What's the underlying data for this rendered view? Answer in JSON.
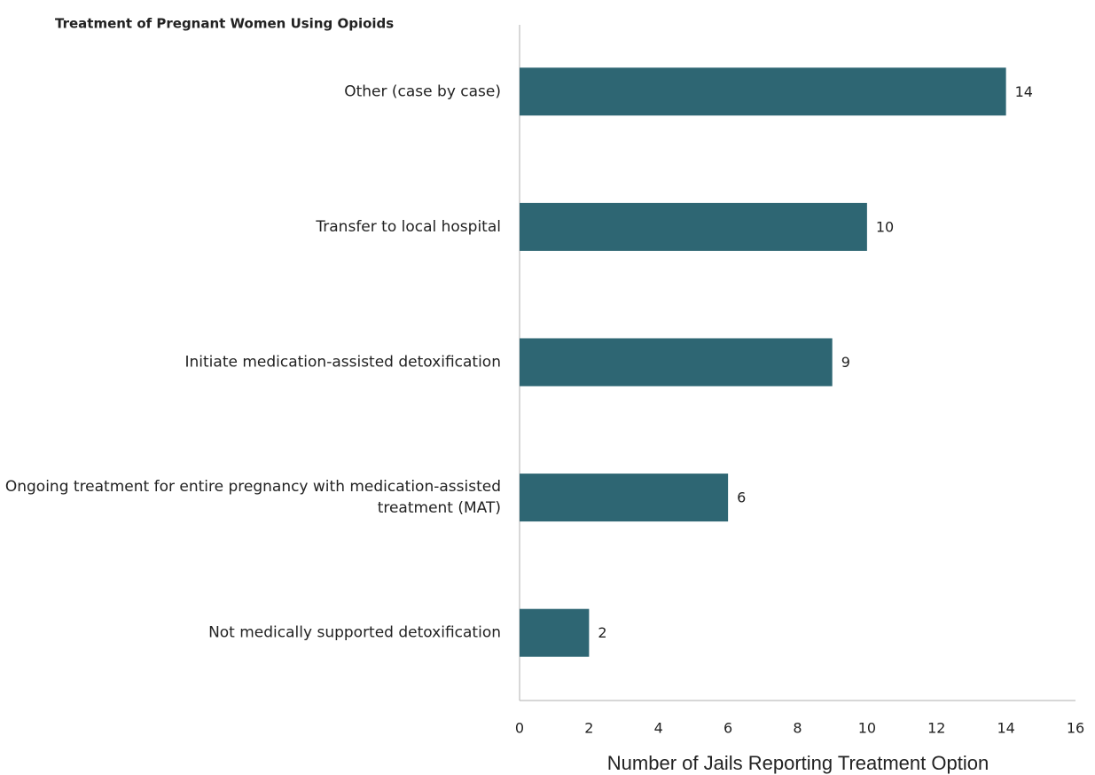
{
  "chart_data": {
    "type": "bar",
    "orientation": "horizontal",
    "title": "Treatment of Pregnant Women Using Opioids",
    "categories": [
      "Other (case by case)",
      "Transfer to local hospital",
      "Initiate medication-assisted detoxification",
      "Ongoing treatment for entire pregnancy with medication-assisted treatment (MAT)",
      "Not medically supported detoxification"
    ],
    "values": [
      14,
      10,
      9,
      6,
      2
    ],
    "color": "#2e6673",
    "xlabel": "Number of Jails Reporting Treatment Option",
    "xlim": [
      0,
      16
    ],
    "xticks": [
      0,
      2,
      4,
      6,
      8,
      10,
      12,
      14,
      16
    ],
    "grid": false
  }
}
